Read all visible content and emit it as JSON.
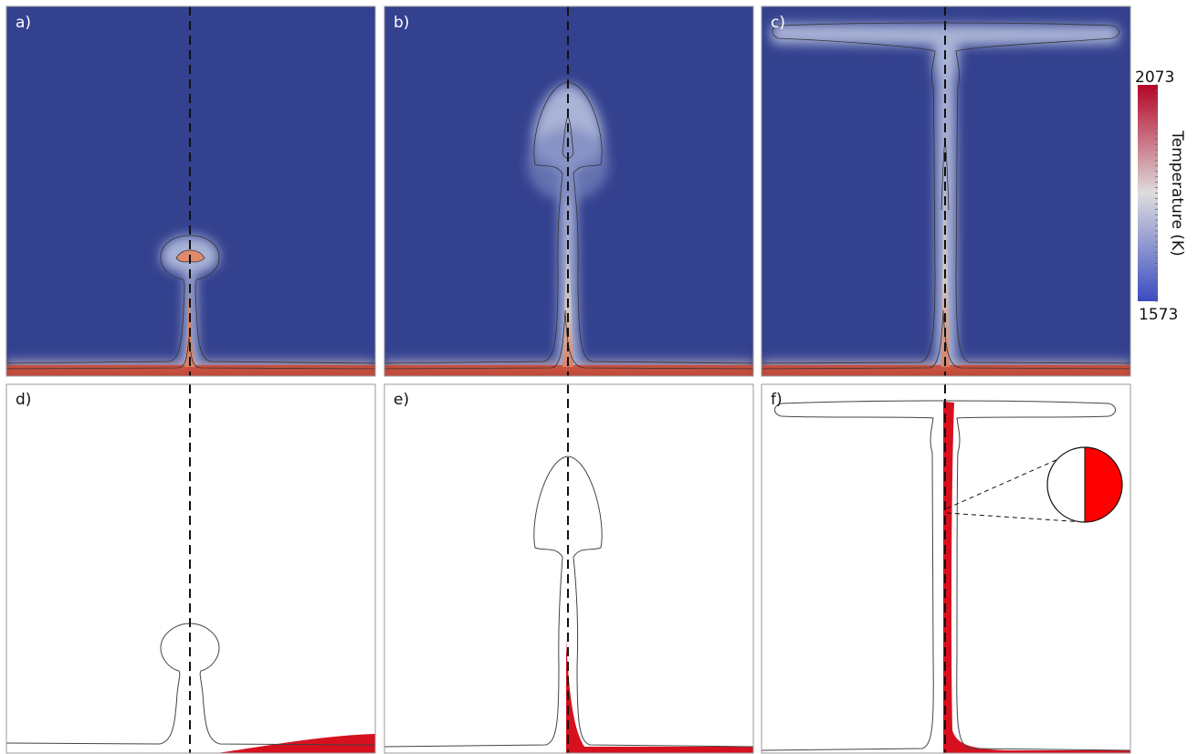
{
  "panels": [
    {
      "label": "a)"
    },
    {
      "label": "b)"
    },
    {
      "label": "c)"
    },
    {
      "label": "d)"
    },
    {
      "label": "e)"
    },
    {
      "label": "f)"
    }
  ],
  "colorbar": {
    "title": "Temperature (K)",
    "max_label": "2073",
    "min_label": "1573",
    "colors": {
      "low": "#3b4cc0",
      "mid": "#dddddd",
      "high": "#b40426"
    }
  },
  "colors": {
    "background_cold": "#34418f",
    "material_fill": "#d7101f",
    "outline": "#555555",
    "axis_line": "#111111"
  }
}
